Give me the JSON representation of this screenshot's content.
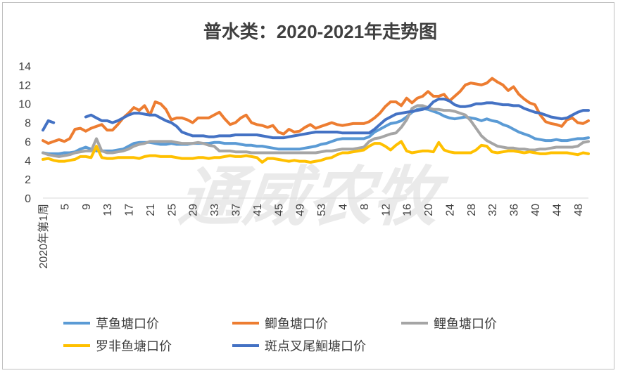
{
  "chart_data": {
    "type": "line",
    "title": "普水类：2020-2021年走势图",
    "xlabel": "",
    "ylabel": "",
    "ylim": [
      0,
      14
    ],
    "yticks": [
      0,
      2,
      4,
      6,
      8,
      10,
      12,
      14
    ],
    "grid": false,
    "legend_position": "bottom",
    "first_tick_label": "2020年第1周",
    "tick_labels": [
      "5",
      "9",
      "13",
      "17",
      "21",
      "25",
      "29",
      "33",
      "37",
      "41",
      "45",
      "49",
      "53",
      "4",
      "8",
      "12",
      "16",
      "20",
      "24",
      "28",
      "32",
      "36",
      "40",
      "44",
      "48",
      "52"
    ],
    "watermark": "通威农牧",
    "x": [
      1,
      2,
      3,
      4,
      5,
      6,
      7,
      8,
      9,
      10,
      11,
      12,
      13,
      14,
      15,
      16,
      17,
      18,
      19,
      20,
      21,
      22,
      23,
      24,
      25,
      26,
      27,
      28,
      29,
      30,
      31,
      32,
      33,
      34,
      35,
      36,
      37,
      38,
      39,
      40,
      41,
      42,
      43,
      44,
      45,
      46,
      47,
      48,
      49,
      50,
      51,
      52,
      53,
      54,
      55,
      56,
      57,
      58,
      59,
      60,
      61,
      62,
      63,
      64,
      65,
      66,
      67,
      68,
      69,
      70,
      71,
      72,
      73,
      74,
      75,
      76,
      77,
      78,
      79,
      80,
      81,
      82,
      83,
      84,
      85,
      86,
      87,
      88,
      89,
      90,
      91,
      92,
      93,
      94,
      95,
      96,
      97,
      98,
      99,
      100,
      101,
      102,
      103
    ],
    "series": [
      {
        "name": "草鱼塘口价",
        "color": "#5b9bd5",
        "values": [
          4.8,
          4.7,
          4.7,
          4.7,
          4.8,
          4.8,
          4.9,
          5.2,
          5.4,
          5.2,
          5.0,
          5.0,
          5.0,
          5.0,
          5.1,
          5.2,
          5.5,
          5.8,
          5.9,
          5.9,
          5.9,
          5.8,
          5.7,
          5.7,
          5.8,
          5.7,
          5.7,
          5.7,
          5.8,
          5.8,
          5.8,
          5.8,
          5.9,
          5.9,
          5.8,
          5.8,
          5.8,
          5.7,
          5.6,
          5.6,
          5.5,
          5.5,
          5.4,
          5.3,
          5.2,
          5.2,
          5.2,
          5.2,
          5.2,
          5.3,
          5.4,
          5.5,
          5.7,
          5.8,
          6.0,
          6.2,
          6.3,
          6.3,
          6.3,
          6.3,
          6.3,
          6.5,
          7.0,
          7.3,
          7.6,
          7.9,
          8.0,
          8.2,
          8.6,
          9.1,
          9.4,
          9.5,
          9.4,
          9.2,
          9.0,
          8.7,
          8.5,
          8.4,
          8.5,
          8.6,
          8.5,
          8.4,
          8.2,
          8.4,
          8.2,
          8.1,
          7.8,
          7.6,
          7.3,
          7.0,
          6.8,
          6.6,
          6.3,
          6.2,
          6.1,
          6.1,
          6.2,
          6.1,
          6.1,
          6.2,
          6.3,
          6.3,
          6.4
        ]
      },
      {
        "name": "鲫鱼塘口价",
        "color": "#ed7d31",
        "values": [
          6.1,
          5.8,
          6.0,
          6.2,
          6.0,
          6.3,
          7.3,
          7.4,
          7.1,
          7.4,
          7.6,
          7.8,
          7.2,
          7.2,
          7.8,
          8.5,
          9.0,
          9.6,
          9.3,
          9.8,
          8.8,
          10.2,
          10.0,
          9.4,
          8.3,
          8.5,
          8.5,
          8.3,
          8.0,
          8.5,
          8.5,
          8.5,
          8.8,
          9.1,
          8.4,
          7.8,
          8.0,
          8.5,
          8.8,
          8.0,
          7.8,
          7.7,
          7.5,
          7.7,
          7.0,
          6.8,
          7.3,
          7.0,
          7.1,
          7.5,
          7.8,
          7.4,
          7.6,
          7.8,
          8.0,
          7.8,
          7.7,
          7.8,
          7.9,
          7.9,
          7.9,
          8.1,
          8.5,
          9.0,
          9.7,
          10.2,
          10.2,
          9.8,
          10.6,
          10.1,
          10.6,
          10.8,
          11.3,
          10.8,
          10.8,
          11.0,
          10.3,
          10.8,
          11.3,
          12.0,
          12.2,
          12.1,
          12.0,
          12.2,
          12.7,
          12.3,
          12.0,
          11.4,
          11.8,
          11.0,
          10.5,
          10.1,
          9.9,
          8.8,
          8.1,
          7.9,
          7.8,
          7.6,
          8.3,
          8.5,
          8.0,
          7.9,
          8.2
        ]
      },
      {
        "name": "鲤鱼塘口价",
        "color": "#a5a5a5",
        "values": [
          4.8,
          4.6,
          4.5,
          4.4,
          4.5,
          4.6,
          4.8,
          4.9,
          5.0,
          5.0,
          6.3,
          5.0,
          4.8,
          4.8,
          4.9,
          5.0,
          5.2,
          5.5,
          5.7,
          5.8,
          6.0,
          6.0,
          6.0,
          6.0,
          6.0,
          5.9,
          5.8,
          5.8,
          5.8,
          5.9,
          5.8,
          5.6,
          5.5,
          5.0,
          5.0,
          5.0,
          4.9,
          4.9,
          4.9,
          4.8,
          4.8,
          4.8,
          4.8,
          4.8,
          4.8,
          4.8,
          4.8,
          4.8,
          4.8,
          4.8,
          4.8,
          4.8,
          4.9,
          5.0,
          5.0,
          5.1,
          5.2,
          5.2,
          5.2,
          5.3,
          5.4,
          6.0,
          6.3,
          6.4,
          6.6,
          6.8,
          6.9,
          7.5,
          8.3,
          9.5,
          9.8,
          9.8,
          9.6,
          9.4,
          9.4,
          9.3,
          9.3,
          9.2,
          9.0,
          8.8,
          8.2,
          7.4,
          6.6,
          6.1,
          5.8,
          5.5,
          5.4,
          5.3,
          5.3,
          5.2,
          5.2,
          5.1,
          5.1,
          5.2,
          5.2,
          5.3,
          5.4,
          5.4,
          5.4,
          5.4,
          5.5,
          5.9,
          6.0
        ]
      },
      {
        "name": "罗非鱼塘口价",
        "color": "#ffc000",
        "values": [
          4.1,
          4.2,
          4.0,
          3.9,
          3.9,
          4.0,
          4.1,
          4.4,
          4.4,
          4.3,
          5.5,
          4.3,
          4.2,
          4.2,
          4.3,
          4.3,
          4.3,
          4.3,
          4.2,
          4.4,
          4.5,
          4.5,
          4.4,
          4.4,
          4.4,
          4.3,
          4.2,
          4.2,
          4.2,
          4.3,
          4.3,
          4.2,
          4.3,
          4.3,
          4.4,
          4.5,
          4.4,
          4.4,
          4.5,
          4.4,
          4.3,
          3.8,
          4.2,
          4.2,
          4.1,
          4.0,
          3.9,
          4.0,
          3.9,
          3.9,
          3.8,
          3.9,
          4.0,
          4.2,
          4.3,
          4.6,
          4.8,
          4.8,
          4.9,
          5.0,
          5.1,
          5.5,
          5.8,
          5.8,
          5.5,
          5.1,
          5.6,
          6.0,
          5.0,
          4.8,
          4.9,
          5.0,
          5.0,
          4.9,
          5.9,
          5.1,
          4.9,
          4.8,
          4.8,
          4.8,
          4.8,
          5.1,
          5.6,
          5.5,
          4.9,
          4.8,
          4.9,
          5.0,
          5.0,
          4.9,
          4.8,
          4.9,
          4.8,
          4.7,
          4.7,
          4.8,
          4.8,
          4.8,
          4.8,
          4.7,
          4.6,
          4.8,
          4.7
        ]
      },
      {
        "name": "斑点叉尾鮰塘口价",
        "color": "#4472c4",
        "values": [
          7.2,
          8.2,
          8.0,
          null,
          null,
          null,
          null,
          null,
          8.6,
          8.8,
          8.5,
          8.2,
          8.2,
          8.0,
          8.2,
          8.5,
          8.8,
          9.0,
          9.0,
          8.9,
          8.8,
          8.8,
          8.5,
          8.2,
          8.0,
          7.6,
          7.0,
          6.8,
          6.6,
          6.6,
          6.6,
          6.5,
          6.5,
          6.6,
          6.6,
          6.6,
          6.7,
          6.7,
          6.7,
          6.7,
          6.7,
          6.6,
          6.5,
          6.4,
          6.4,
          6.4,
          6.5,
          6.6,
          6.7,
          6.8,
          6.9,
          7.0,
          7.0,
          7.0,
          7.0,
          7.0,
          6.9,
          6.9,
          6.9,
          6.9,
          6.9,
          6.9,
          7.3,
          7.8,
          8.3,
          8.6,
          8.9,
          9.0,
          9.1,
          9.2,
          9.3,
          9.4,
          9.6,
          10.2,
          10.5,
          10.5,
          10.3,
          9.9,
          9.7,
          9.7,
          9.8,
          10.0,
          10.0,
          10.1,
          10.1,
          10.0,
          9.9,
          9.9,
          9.8,
          9.8,
          9.5,
          9.3,
          9.1,
          9.0,
          8.8,
          8.6,
          8.5,
          8.4,
          8.5,
          8.8,
          9.1,
          9.3,
          9.3
        ]
      }
    ]
  }
}
